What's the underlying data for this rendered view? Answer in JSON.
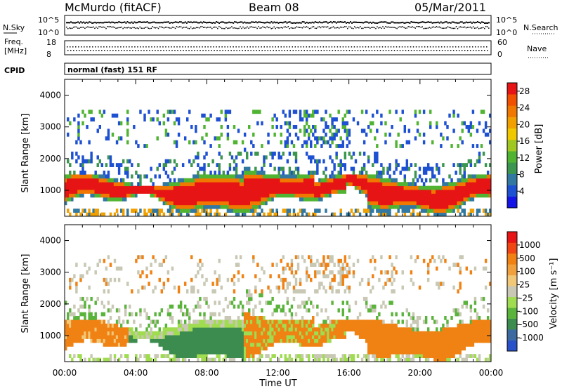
{
  "header": {
    "station": "McMurdo (fitACF)",
    "beam": "Beam 08",
    "date": "05/Mar/2011"
  },
  "top_panels": {
    "nsky_label": "N.Sky",
    "nsearch_label": "N.Search",
    "nsky_top_tick": "10^5",
    "nsky_bottom_tick": "10^0",
    "freq_label_line1": "Freq.",
    "freq_label_line2": "[MHz]",
    "freq_ticks": [
      "18",
      "8"
    ],
    "nave_label": "Nave",
    "nave_ticks": [
      "60",
      "0"
    ],
    "cpid_label": "CPID",
    "cpid_text": "normal (fast) 151 RF"
  },
  "chart_data": [
    {
      "type": "heatmap",
      "title": "",
      "xlabel": "Time UT",
      "ylabel": "Slant Range [km]",
      "x_ticks": [
        "00:00",
        "04:00",
        "08:00",
        "12:00",
        "16:00",
        "20:00",
        "00:00"
      ],
      "y_ticks": [
        "1000",
        "2000",
        "3000",
        "4000"
      ],
      "xlim": [
        0,
        24
      ],
      "ylim": [
        180,
        4500
      ],
      "colorbar": {
        "label": "Power [dB]",
        "ticks": [
          "4",
          "8",
          "12",
          "16",
          "20",
          "24",
          "28"
        ],
        "range": [
          0,
          30
        ],
        "colors": [
          "#1414e6",
          "#1e50d2",
          "#3278a0",
          "#3c9650",
          "#50b432",
          "#a0c820",
          "#f0c800",
          "#f0a000",
          "#f07800",
          "#f05000",
          "#e61414"
        ]
      },
      "bands": [
        {
          "name": "main echo",
          "start_h": 0.2,
          "end_h": 23.8,
          "range_km": [
            600,
            1500
          ],
          "power_db": 28
        },
        {
          "name": "upper echo",
          "start_h": 1.0,
          "end_h": 23.8,
          "range_km": [
            2300,
            3500
          ],
          "power_db": 10
        }
      ]
    },
    {
      "type": "heatmap",
      "title": "",
      "xlabel": "Time UT",
      "ylabel": "Slant Range [km]",
      "x_ticks": [
        "00:00",
        "04:00",
        "08:00",
        "12:00",
        "16:00",
        "20:00",
        "00:00"
      ],
      "y_ticks": [
        "1000",
        "2000",
        "3000",
        "4000"
      ],
      "xlim": [
        0,
        24
      ],
      "ylim": [
        180,
        4500
      ],
      "colorbar": {
        "label": "Velocity [m s⁻¹]",
        "ticks": [
          "1000",
          "500",
          "100",
          "25",
          "-25",
          "-100",
          "-500",
          "-1000"
        ],
        "range": [
          -1000,
          1000
        ],
        "colors": [
          "#2850c8",
          "#3c6aa0",
          "#3c8c50",
          "#5ab43c",
          "#a0dc50",
          "#c8c8b4",
          "#f0c878",
          "#f0a03c",
          "#f08214",
          "#f04614",
          "#e61414"
        ]
      }
    }
  ]
}
